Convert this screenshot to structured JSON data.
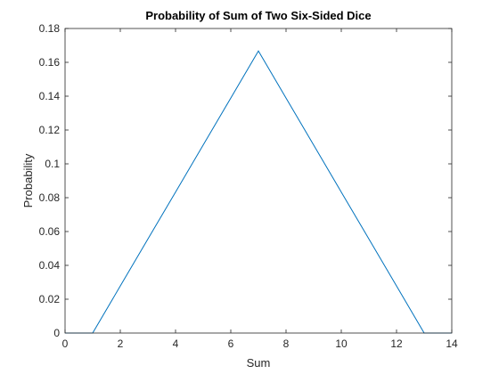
{
  "chart_data": {
    "type": "line",
    "title": "Probability of Sum of Two Six-Sided Dice",
    "xlabel": "Sum",
    "ylabel": "Probability",
    "xlim": [
      0,
      14
    ],
    "ylim": [
      0,
      0.18
    ],
    "xticks": [
      0,
      2,
      4,
      6,
      8,
      10,
      12,
      14
    ],
    "xtick_labels": [
      "0",
      "2",
      "4",
      "6",
      "8",
      "10",
      "12",
      "14"
    ],
    "yticks": [
      0,
      0.02,
      0.04,
      0.06,
      0.08,
      0.1,
      0.12,
      0.14,
      0.16,
      0.18
    ],
    "ytick_labels": [
      "0",
      "0.02",
      "0.04",
      "0.06",
      "0.08",
      "0.1",
      "0.12",
      "0.14",
      "0.16",
      "0.18"
    ],
    "grid": false,
    "line_color": "#0072BD",
    "series": [
      {
        "x": [
          0,
          1,
          2,
          3,
          4,
          5,
          6,
          7,
          8,
          9,
          10,
          11,
          12,
          13,
          14
        ],
        "values": [
          0,
          0,
          0.0278,
          0.0556,
          0.0833,
          0.1111,
          0.1389,
          0.1667,
          0.1389,
          0.1111,
          0.0833,
          0.0556,
          0.0278,
          0,
          0
        ]
      }
    ]
  }
}
